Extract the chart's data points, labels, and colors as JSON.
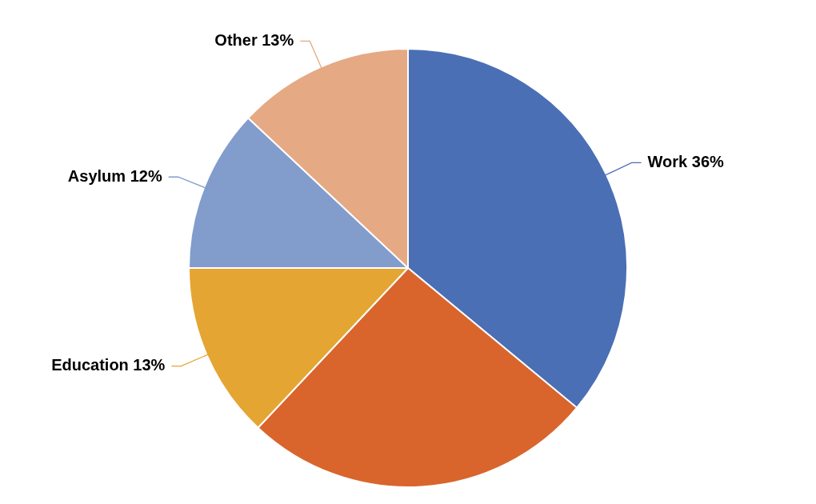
{
  "chart_data": {
    "type": "pie",
    "categories": [
      "Work",
      null,
      "Education",
      "Asylum",
      "Other"
    ],
    "values": [
      36,
      26,
      13,
      12,
      13
    ],
    "value_labels": [
      "36%",
      null,
      "13%",
      "12%",
      "13%"
    ],
    "colors": [
      "#4a6fb5",
      "#d9652c",
      "#e5a533",
      "#829ccc",
      "#e5a984"
    ],
    "legend": false
  }
}
